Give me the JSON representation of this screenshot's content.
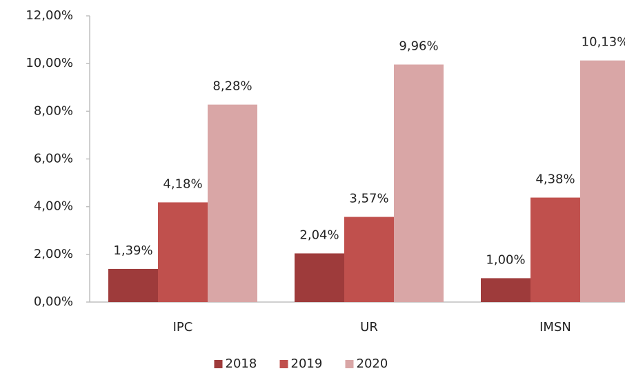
{
  "chart_data": {
    "type": "bar",
    "categories": [
      "IPC",
      "UR",
      "IMSN"
    ],
    "series": [
      {
        "name": "2018",
        "color": "#9e3b3b",
        "values": [
          1.39,
          2.04,
          1.0
        ],
        "value_labels": [
          "1,39%",
          "2,04%",
          "1,00%"
        ]
      },
      {
        "name": "2019",
        "color": "#c0504d",
        "values": [
          4.18,
          3.57,
          4.38
        ],
        "value_labels": [
          "4,18%",
          "3,57%",
          "4,38%"
        ]
      },
      {
        "name": "2020",
        "color": "#d9a6a6",
        "values": [
          8.28,
          9.96,
          10.13
        ],
        "value_labels": [
          "8,28%",
          "9,96%",
          "10,13%"
        ]
      }
    ],
    "ylim": [
      0,
      12
    ],
    "yticks": [
      {
        "value": 0,
        "label": "0,00%"
      },
      {
        "value": 2,
        "label": "2,00%"
      },
      {
        "value": 4,
        "label": "4,00%"
      },
      {
        "value": 6,
        "label": "6,00%"
      },
      {
        "value": 8,
        "label": "8,00%"
      },
      {
        "value": 10,
        "label": "10,00%"
      },
      {
        "value": 12,
        "label": "12,00%"
      }
    ],
    "grid": false,
    "legend": "bottom"
  }
}
